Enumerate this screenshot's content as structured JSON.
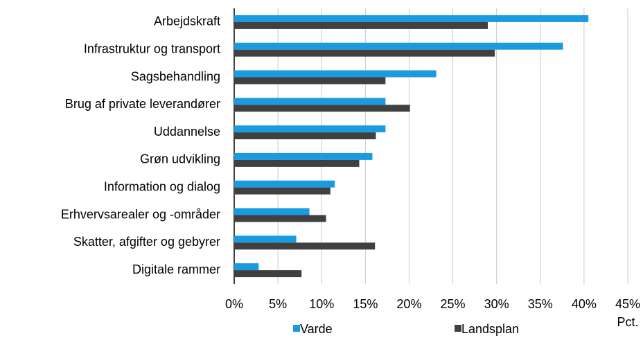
{
  "chart_data": {
    "type": "hbar",
    "categories": [
      "Arbejdskraft",
      "Infrastruktur og transport",
      "Sagsbehandling",
      "Brug af private leverandører",
      "Uddannelse",
      "Grøn udvikling",
      "Information og dialog",
      "Erhvervsarealer og -områder",
      "Skatter, afgifter og gebyrer",
      "Digitale rammer"
    ],
    "series": [
      {
        "name": "Varde",
        "color": "#1a9be0",
        "values": [
          40.5,
          37.6,
          23.1,
          17.3,
          17.3,
          15.8,
          11.5,
          8.6,
          7.1,
          2.8
        ]
      },
      {
        "name": "Landsplan",
        "color": "#404040",
        "values": [
          29.0,
          29.8,
          17.3,
          20.1,
          16.2,
          14.3,
          11.0,
          10.5,
          16.1,
          7.7
        ]
      }
    ],
    "xlabel": "Pct.",
    "xlim": [
      0,
      45
    ],
    "xticks": [
      {
        "value": 0,
        "label": "0%"
      },
      {
        "value": 5,
        "label": "5%"
      },
      {
        "value": 10,
        "label": "10%"
      },
      {
        "value": 15,
        "label": "15%"
      },
      {
        "value": 20,
        "label": "20%"
      },
      {
        "value": 25,
        "label": "25%"
      },
      {
        "value": 30,
        "label": "30%"
      },
      {
        "value": 35,
        "label": "35%"
      },
      {
        "value": 40,
        "label": "40%"
      },
      {
        "value": 45,
        "label": "45%"
      }
    ],
    "grid": true,
    "legend": "bottom"
  }
}
